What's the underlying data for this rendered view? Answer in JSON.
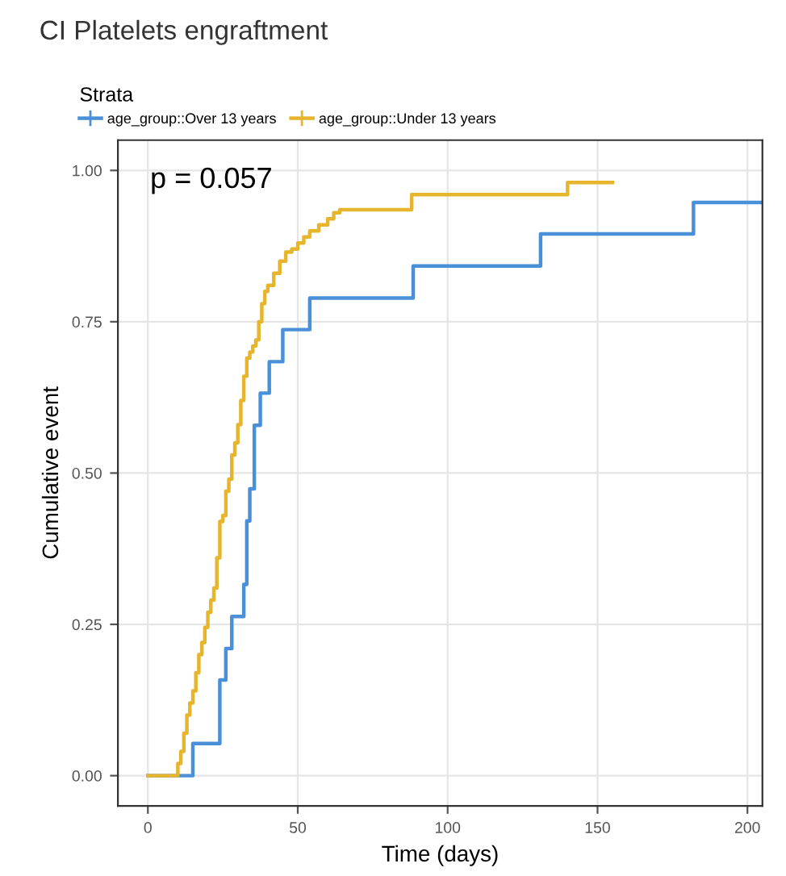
{
  "chart_data": {
    "type": "step",
    "title": "CI Platelets engraftment",
    "xlabel": "Time (days)",
    "ylabel": "Cumulative event",
    "legend_title": "Strata",
    "legend": "top",
    "annotations": [
      "p = 0.057"
    ],
    "xlim": [
      -10,
      205
    ],
    "ylim": [
      -0.05,
      1.05
    ],
    "xticks": [
      0,
      50,
      100,
      150,
      200
    ],
    "yticks": [
      {
        "value": 0,
        "label": "0.00"
      },
      {
        "value": 0.25,
        "label": "0.25"
      },
      {
        "value": 0.5,
        "label": "0.50"
      },
      {
        "value": 0.75,
        "label": "0.75"
      },
      {
        "value": 1,
        "label": "1.00"
      }
    ],
    "grid": true,
    "series": [
      {
        "name": "age_group::Over 13 years",
        "color": "#4a90d9",
        "x": [
          0,
          15,
          24,
          26,
          28,
          32,
          33,
          34,
          35.5,
          37.5,
          40.5,
          45,
          54,
          88.5,
          131,
          182,
          205
        ],
        "values": [
          0,
          0.053,
          0.158,
          0.21,
          0.263,
          0.316,
          0.421,
          0.474,
          0.579,
          0.632,
          0.684,
          0.737,
          0.789,
          0.842,
          0.895,
          0.947,
          0.947
        ]
      },
      {
        "name": "age_group::Under 13 years",
        "color": "#e6b52c",
        "x": [
          0,
          10,
          11,
          12,
          13,
          14,
          15,
          16,
          17,
          18,
          19,
          20,
          21,
          22,
          23,
          24,
          25,
          26,
          27,
          28,
          29,
          30,
          31,
          32,
          33,
          34,
          35,
          36,
          37,
          38,
          39,
          40,
          42,
          44,
          46,
          48,
          50,
          52,
          54,
          57,
          60,
          62,
          64,
          88,
          140,
          155
        ],
        "values": [
          0,
          0.02,
          0.04,
          0.07,
          0.1,
          0.12,
          0.14,
          0.17,
          0.2,
          0.22,
          0.245,
          0.27,
          0.29,
          0.31,
          0.36,
          0.42,
          0.43,
          0.47,
          0.49,
          0.53,
          0.55,
          0.58,
          0.62,
          0.66,
          0.69,
          0.7,
          0.71,
          0.72,
          0.75,
          0.78,
          0.8,
          0.81,
          0.83,
          0.85,
          0.865,
          0.87,
          0.88,
          0.89,
          0.9,
          0.91,
          0.92,
          0.93,
          0.935,
          0.96,
          0.98,
          0.98
        ]
      }
    ]
  }
}
